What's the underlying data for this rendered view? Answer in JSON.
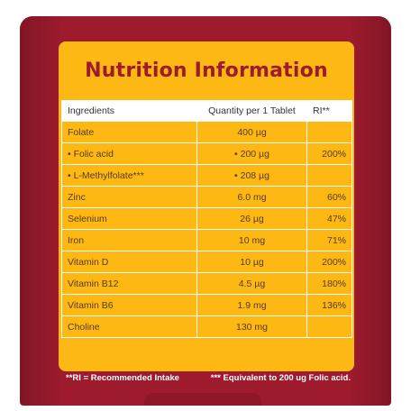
{
  "title": "Nutrition Information",
  "table": {
    "headers": {
      "ingredient": "Ingredients",
      "quantity": "Quantity per 1 Tablet",
      "ri": "RI**"
    },
    "rows": [
      {
        "name": "Folate",
        "qty": "400 µg",
        "ri": ""
      },
      {
        "name": "• Folic acid",
        "qty": "• 200 µg",
        "ri": "200%"
      },
      {
        "name": "• L-Methylfolate***",
        "qty": "• 208 µg",
        "ri": ""
      },
      {
        "name": "Zinc",
        "qty": "6.0 mg",
        "ri": "60%"
      },
      {
        "name": "Selenium",
        "qty": "26 µg",
        "ri": "47%"
      },
      {
        "name": "Iron",
        "qty": "10 mg",
        "ri": "71%"
      },
      {
        "name": "Vitamin D",
        "qty": "10 µg",
        "ri": "200%"
      },
      {
        "name": "Vitamin B12",
        "qty": "4.5 µg",
        "ri": "180%"
      },
      {
        "name": "Vitamin B6",
        "qty": "1.9 mg",
        "ri": "136%"
      },
      {
        "name": "Choline",
        "qty": "130 mg",
        "ri": ""
      }
    ]
  },
  "footnotes": {
    "ri": "**RI = Recommended Intake",
    "folate": "*** Equivalent to 200 ug Folic acid."
  },
  "colors": {
    "pack": "#9e1b2e",
    "card": "#fdb813",
    "title": "#9e1b2e"
  }
}
